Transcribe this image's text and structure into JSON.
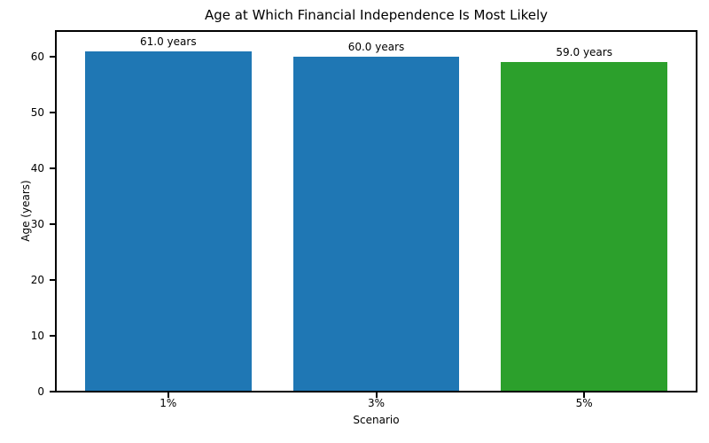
{
  "chart_data": {
    "type": "bar",
    "title": "Age at Which Financial Independence Is Most Likely",
    "xlabel": "Scenario",
    "ylabel": "Age (years)",
    "categories": [
      "1%",
      "3%",
      "5%"
    ],
    "values": [
      61.0,
      60.0,
      59.0
    ],
    "bar_labels": [
      "61.0 years",
      "60.0 years",
      "59.0 years"
    ],
    "bar_colors": [
      "#1f77b4",
      "#1f77b4",
      "#2ca02c"
    ],
    "yticks": [
      0,
      10,
      20,
      30,
      40,
      50,
      60
    ],
    "ylim": [
      0,
      64.6
    ],
    "xlim": [
      -0.54,
      2.54
    ],
    "bar_width": 0.8,
    "grid": false,
    "legend": "none",
    "background_color": "#ffffff",
    "text_color": "#000000",
    "spine_color": "#000000"
  }
}
